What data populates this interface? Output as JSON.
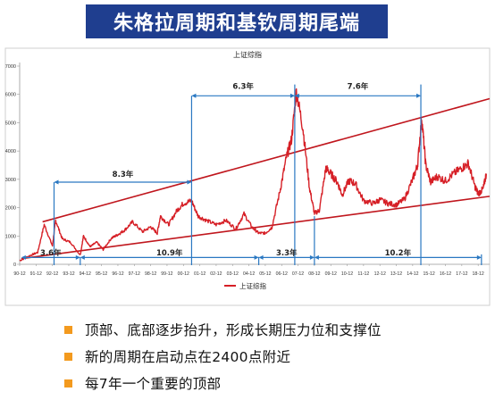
{
  "page": {
    "title": "朱格拉周期和基钦周期尾端",
    "bullets": [
      "顶部、底部逐步抬升，形成长期压力位和支撑位",
      "新的周期在启动点在2400点附近",
      "每7年一个重要的顶部"
    ],
    "colors": {
      "banner": "#1f3e8f",
      "bullet": "#f39a1e",
      "series": "#d61f26",
      "annotation": "#2a78c2"
    }
  },
  "chart_data": {
    "type": "line",
    "title": "上证综指",
    "legend": "上证综指",
    "legend_position": "bottom",
    "ylim": [
      0,
      7000
    ],
    "yticks": [
      "0",
      "1000",
      "2000",
      "3000",
      "4000",
      "5000",
      "6000",
      "7000"
    ],
    "xticks": [
      "90-12",
      "91-12",
      "92-12",
      "93-12",
      "94-12",
      "95-12",
      "96-12",
      "97-12",
      "98-12",
      "99-12",
      "00-12",
      "01-12",
      "02-12",
      "03-12",
      "04-12",
      "05-12",
      "06-12",
      "07-12",
      "08-12",
      "09-12",
      "10-12",
      "11-12",
      "12-12",
      "13-12",
      "14-12",
      "15-12",
      "16-12",
      "17-12",
      "18-12"
    ],
    "series": [
      {
        "name": "上证综指",
        "x": [
          1990.9,
          1991.5,
          1992.0,
          1992.4,
          1992.9,
          1993.1,
          1993.5,
          1994.0,
          1994.6,
          1994.8,
          1995.2,
          1995.6,
          1996.0,
          1996.5,
          1996.9,
          1997.3,
          1997.8,
          1998.4,
          1998.9,
          1999.3,
          1999.5,
          2000.0,
          2000.5,
          2000.9,
          2001.4,
          2001.8,
          2002.3,
          2002.9,
          2003.5,
          2004.1,
          2004.6,
          2005.1,
          2005.5,
          2005.9,
          2006.3,
          2006.8,
          2007.2,
          2007.5,
          2007.8,
          2008.2,
          2008.6,
          2008.9,
          2009.2,
          2009.6,
          2009.9,
          2010.3,
          2010.6,
          2011.0,
          2011.4,
          2011.9,
          2012.5,
          2012.9,
          2013.4,
          2013.9,
          2014.4,
          2014.9,
          2015.2,
          2015.45,
          2015.7,
          2016.0,
          2016.4,
          2016.9,
          2017.4,
          2017.9,
          2018.3,
          2018.7,
          2018.9,
          2019.2,
          2019.4
        ],
        "values": [
          130,
          300,
          420,
          1400,
          650,
          1550,
          900,
          780,
          330,
          1000,
          620,
          780,
          520,
          920,
          1050,
          1200,
          1500,
          1150,
          1320,
          1100,
          1700,
          1400,
          1900,
          2150,
          2245,
          1700,
          1550,
          1400,
          1550,
          1250,
          1780,
          1300,
          1100,
          1100,
          1300,
          2600,
          3800,
          4400,
          6100,
          4800,
          2700,
          1800,
          1900,
          3400,
          3200,
          2900,
          2450,
          2950,
          2850,
          2250,
          2150,
          2280,
          2150,
          2100,
          2300,
          3000,
          3500,
          5180,
          3500,
          2900,
          3100,
          2950,
          3200,
          3400,
          3560,
          2750,
          2500,
          2650,
          3200
        ]
      }
    ],
    "trendlines": [
      {
        "from": [
          1992.3,
          1500
        ],
        "to": [
          2019.6,
          5850
        ]
      },
      {
        "from": [
          1991.0,
          200
        ],
        "to": [
          2019.6,
          2400
        ]
      }
    ],
    "annotations": [
      "8.3年",
      "6.3年",
      "7.6年",
      "3.6年",
      "10.9年",
      "3.3年",
      "10.2年"
    ]
  }
}
